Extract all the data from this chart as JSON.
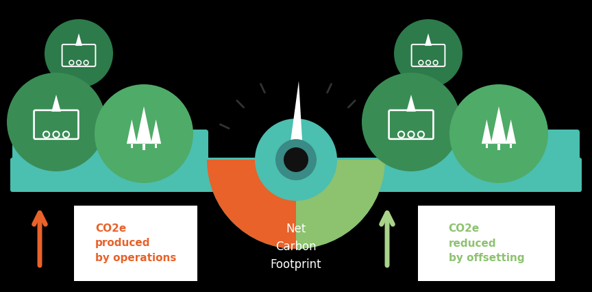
{
  "bg_color": "#000000",
  "teal_color": "#4BBFB0",
  "teal_dark": "#3a9e90",
  "orange_color": "#E8622A",
  "green_color": "#8DC26F",
  "green_light": "#a8d48a",
  "circle_dg1": "#2d7a4a",
  "circle_dg2": "#3a8c55",
  "circle_dg3": "#4fab68",
  "needle_white": "#FFFFFF",
  "needle_black": "#111111",
  "pivot_teal": "#3a8a85",
  "text_orange": "#E8622A",
  "text_green": "#8DC26F",
  "text_white": "#FFFFFF",
  "box_fill": "#FFFFFF",
  "tick_color": "#333333",
  "title_text": "Net\nCarbon\nFootprint",
  "left_label": "CO2e\nproduced\nby operations",
  "right_label": "CO2e\nreduced\nby offsetting"
}
